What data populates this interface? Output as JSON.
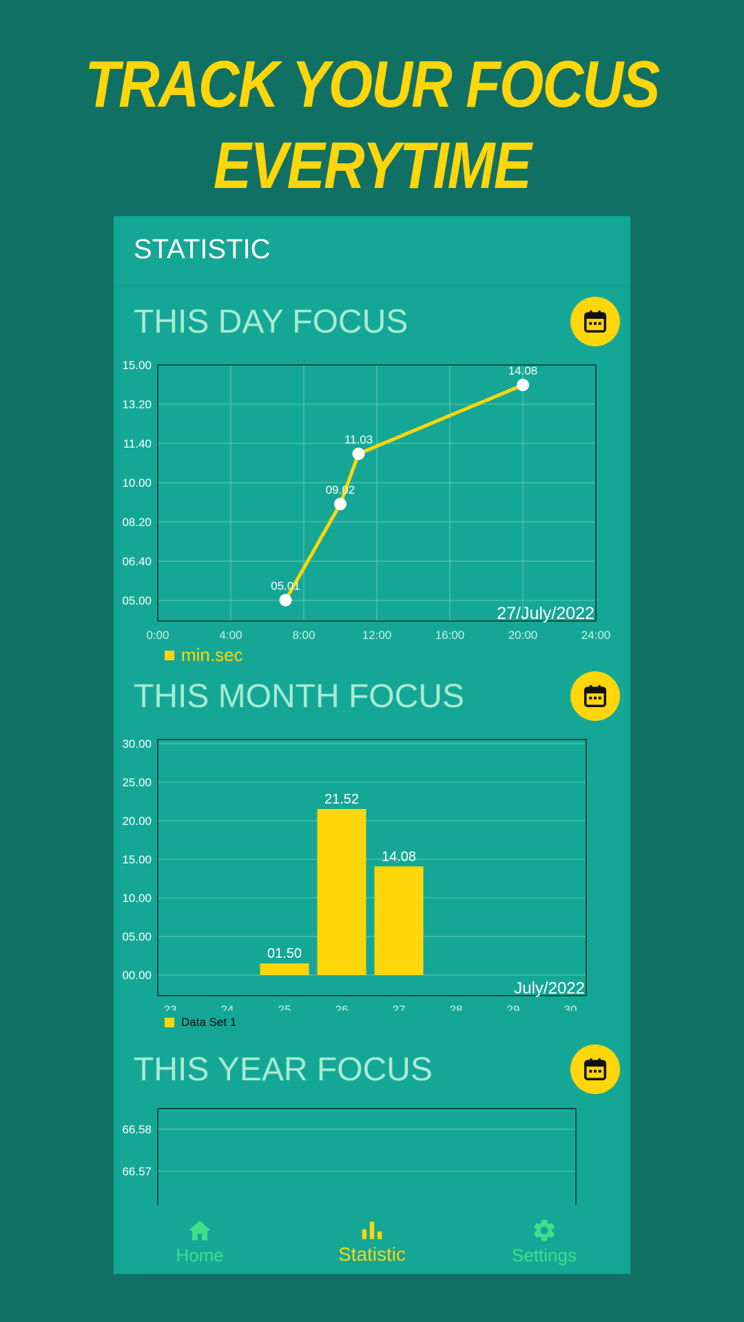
{
  "headline": {
    "line1": "TRACK YOUR FOCUS",
    "line2": "EVERYTIME"
  },
  "appbar": {
    "title": "STATISTIC"
  },
  "sections": {
    "day": {
      "title": "THIS DAY FOCUS"
    },
    "month": {
      "title": "THIS MONTH FOCUS"
    },
    "year": {
      "title": "THIS YEAR FOCUS"
    }
  },
  "colors": {
    "accent": "#FFD60A",
    "background": "#117064",
    "card": "#15A796",
    "section_title": "#A8EBD3",
    "nav_inactive": "#3FE08C"
  },
  "icons": {
    "calendar": "calendar-icon",
    "home": "home-icon",
    "statistic": "bar-chart-icon",
    "settings": "gear-icon"
  },
  "nav": {
    "home": "Home",
    "statistic": "Statistic",
    "settings": "Settings",
    "active": "statistic"
  },
  "chart_data": [
    {
      "type": "line",
      "x_hours": [
        7,
        10,
        11,
        20
      ],
      "values": [
        5.01,
        9.02,
        11.03,
        14.08
      ],
      "point_labels": [
        "05.01",
        "09.02",
        "11.03",
        "14.08"
      ],
      "x_ticks": [
        "0:00",
        "4:00",
        "8:00",
        "12:00",
        "16:00",
        "20:00",
        "24:00"
      ],
      "y_ticks": [
        "15.00",
        "13.20",
        "11.40",
        "10.00",
        "08.20",
        "06.40",
        "05.00"
      ],
      "xlim": [
        0,
        24
      ],
      "corner_label": "27/July/2022",
      "legend": "min.sec",
      "grid": true
    },
    {
      "type": "bar",
      "categories": [
        "23",
        "24",
        "25",
        "26",
        "27",
        "28",
        "29",
        "30"
      ],
      "values": [
        0,
        0,
        1.5,
        21.52,
        14.08,
        0,
        0,
        0
      ],
      "value_labels": [
        "",
        "",
        "01.50",
        "21.52",
        "14.08",
        "",
        "",
        ""
      ],
      "y_ticks": [
        "30.00",
        "25.00",
        "20.00",
        "15.00",
        "10.00",
        "05.00",
        "00.00"
      ],
      "ylim": [
        0,
        30
      ],
      "corner_label": "July/2022",
      "legend": "Data Set 1",
      "grid": true
    },
    {
      "type": "line",
      "y_ticks": [
        "66.58",
        "66.57"
      ],
      "values": [],
      "grid": true
    }
  ]
}
